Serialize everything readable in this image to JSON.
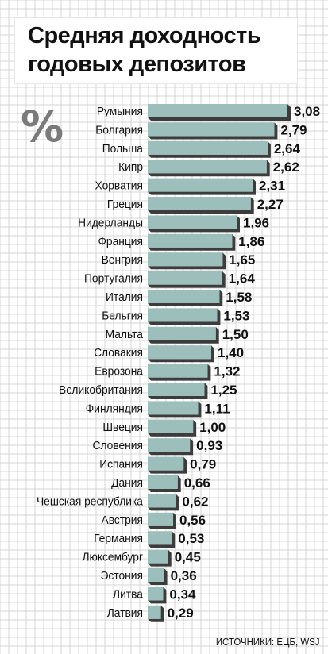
{
  "title_line1": "Средняя доходность",
  "title_line2": "годовых депозитов",
  "unit_symbol": "%",
  "source": "ИСТОЧНИКИ: ЕЦБ, WSJ",
  "colors": {
    "bar_fill": "#9cbfbb",
    "bar_shadow": "#3c3c3c",
    "grid": "#d5d5d5",
    "text": "#111111",
    "unit": "#7a7a7a"
  },
  "chart_data": {
    "type": "bar",
    "orientation": "horizontal",
    "categories": [
      "Румыния",
      "Болгария",
      "Польша",
      "Кипр",
      "Хорватия",
      "Греция",
      "Нидерланды",
      "Франция",
      "Венгрия",
      "Португалия",
      "Италия",
      "Бельгия",
      "Мальта",
      "Словакия",
      "Еврозона",
      "Великобритания",
      "Финляндия",
      "Швеция",
      "Словения",
      "Испания",
      "Дания",
      "Чешская республика",
      "Австрия",
      "Германия",
      "Люксембург",
      "Эстония",
      "Литва",
      "Латвия"
    ],
    "values": [
      3.08,
      2.79,
      2.64,
      2.62,
      2.31,
      2.27,
      1.96,
      1.86,
      1.65,
      1.64,
      1.58,
      1.53,
      1.5,
      1.4,
      1.32,
      1.25,
      1.11,
      1.0,
      0.93,
      0.79,
      0.66,
      0.62,
      0.56,
      0.53,
      0.45,
      0.36,
      0.34,
      0.29
    ],
    "value_labels": [
      "3,08",
      "2,79",
      "2,64",
      "2,62",
      "2,31",
      "2,27",
      "1,96",
      "1,86",
      "1,65",
      "1,64",
      "1,58",
      "1,53",
      "1,50",
      "1,40",
      "1,32",
      "1,25",
      "1,11",
      "1,00",
      "0,93",
      "0,79",
      "0,66",
      "0,62",
      "0,56",
      "0,53",
      "0,45",
      "0,36",
      "0,34",
      "0,29"
    ],
    "title": "Средняя доходность годовых депозитов",
    "xlabel": "",
    "ylabel": "",
    "xlim": [
      0,
      3.08
    ],
    "grid": true,
    "legend": "none"
  }
}
